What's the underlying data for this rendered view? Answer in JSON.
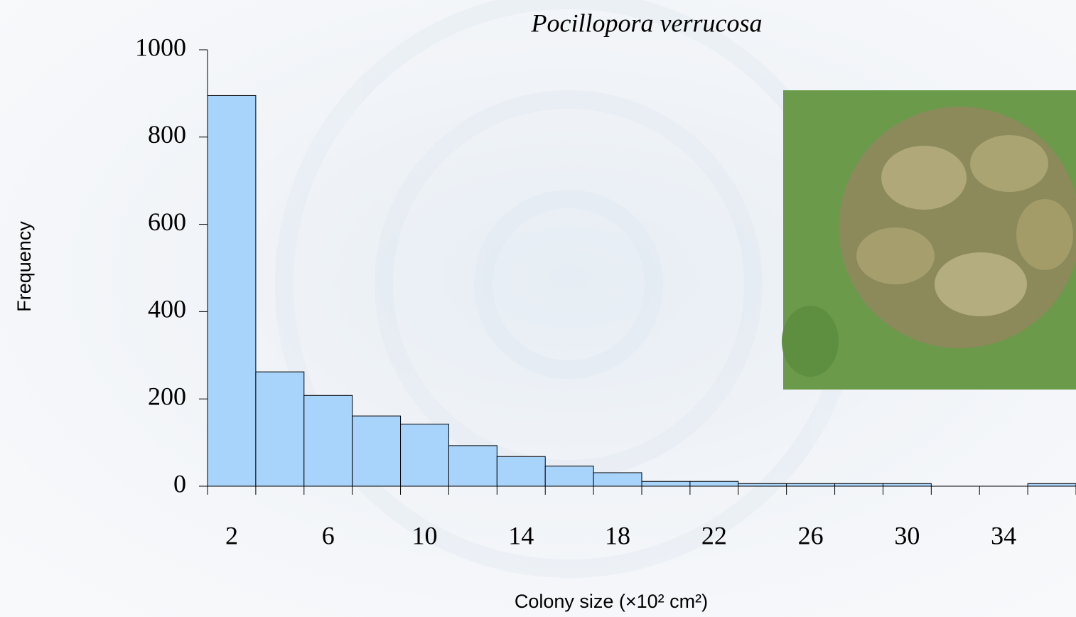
{
  "chart_data": {
    "type": "histogram",
    "title": "Pocillopora verrucosa",
    "x_label": "Colony size (×10² cm²)",
    "y_label": "Frequency",
    "bins": [
      1,
      3,
      5,
      7,
      9,
      11,
      13,
      15,
      17,
      19,
      21,
      23,
      25,
      27,
      29,
      31,
      33,
      35,
      37
    ],
    "values": [
      895,
      262,
      208,
      161,
      142,
      93,
      68,
      46,
      31,
      11,
      11,
      6,
      6,
      6,
      6,
      0,
      0,
      6
    ],
    "color": "#a8d4fc",
    "xlim": [
      1,
      37
    ],
    "xticks": [
      2,
      6,
      10,
      14,
      18,
      22,
      26,
      30,
      34
    ],
    "ylim": [
      0,
      1000
    ],
    "yticks": [
      0,
      200,
      400,
      600,
      800,
      1000
    ]
  }
}
